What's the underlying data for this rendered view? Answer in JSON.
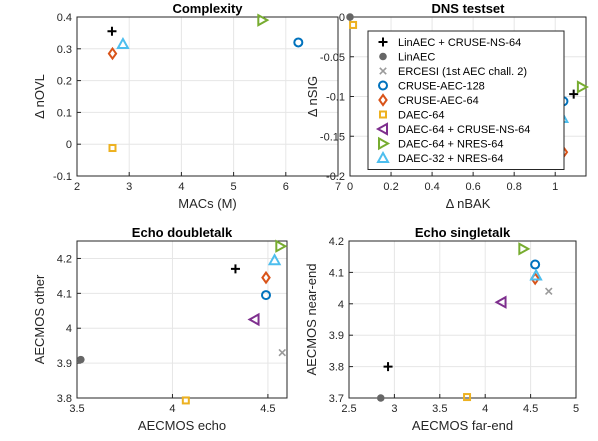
{
  "chart_data": [
    {
      "type": "scatter",
      "title": "Complexity",
      "xlabel": "MACs (M)",
      "ylabel": "Δ nOVL",
      "xlim": [
        2,
        7
      ],
      "ylim": [
        -0.1,
        0.4
      ],
      "xticks": [
        "2",
        "3",
        "4",
        "5",
        "6",
        "7"
      ],
      "yticks": [
        "-0.1",
        "0",
        "0.1",
        "0.2",
        "0.3",
        "0.4"
      ],
      "grid": true,
      "points": [
        {
          "series": "LinAEC + CRUSE-NS-64",
          "x": 2.67,
          "y": 0.355
        },
        {
          "series": "CRUSE-AEC-128",
          "x": 6.24,
          "y": 0.32
        },
        {
          "series": "CRUSE-AEC-64",
          "x": 2.68,
          "y": 0.285
        },
        {
          "series": "DAEC-64",
          "x": 2.68,
          "y": -0.012
        },
        {
          "series": "DAEC-64 + NRES-64",
          "x": 5.55,
          "y": 0.39
        },
        {
          "series": "DAEC-32 + NRES-64",
          "x": 2.88,
          "y": 0.315
        }
      ]
    },
    {
      "type": "scatter",
      "title": "DNS testset",
      "xlabel": "Δ nBAK",
      "ylabel": "Δ nSIG",
      "xlim": [
        0,
        1.15
      ],
      "ylim": [
        -0.2,
        0
      ],
      "xticks": [
        "0",
        "0.2",
        "0.4",
        "0.6",
        "0.8",
        "1"
      ],
      "yticks": [
        "-0.2",
        "-0.15",
        "-0.1",
        "-0.05",
        "0"
      ],
      "grid": true,
      "legend_position": "top-right",
      "legend": [
        "LinAEC + CRUSE-NS-64",
        "LinAEC",
        "ERCESI (1st AEC chall. 2)",
        "CRUSE-AEC-128",
        "CRUSE-AEC-64",
        "DAEC-64",
        "DAEC-64 + CRUSE-NS-64",
        "DAEC-64 + NRES-64",
        "DAEC-32 + NRES-64"
      ],
      "points": [
        {
          "series": "LinAEC",
          "x": 0.0,
          "y": 0.0
        },
        {
          "series": "DAEC-64",
          "x": 0.015,
          "y": -0.01
        },
        {
          "series": "LinAEC + CRUSE-NS-64",
          "x": 1.09,
          "y": -0.097
        },
        {
          "series": "DAEC-64 + NRES-64",
          "x": 1.13,
          "y": -0.088
        },
        {
          "series": "CRUSE-AEC-128",
          "x": 1.04,
          "y": -0.106
        },
        {
          "series": "DAEC-32 + NRES-64",
          "x": 1.035,
          "y": -0.127
        },
        {
          "series": "CRUSE-AEC-64",
          "x": 1.04,
          "y": -0.17
        }
      ]
    },
    {
      "type": "scatter",
      "title": "Echo doubletalk",
      "xlabel": "AECMOS echo",
      "ylabel": "AECMOS other",
      "xlim": [
        3.5,
        4.6
      ],
      "ylim": [
        3.8,
        4.25
      ],
      "xticks": [
        "3.5",
        "4",
        "4.5"
      ],
      "yticks": [
        "3.8",
        "3.9",
        "4",
        "4.1",
        "4.2"
      ],
      "grid": true,
      "points": [
        {
          "series": "LinAEC",
          "x": 3.52,
          "y": 3.91
        },
        {
          "series": "DAEC-64",
          "x": 4.07,
          "y": 3.793
        },
        {
          "series": "LinAEC + CRUSE-NS-64",
          "x": 4.33,
          "y": 4.17
        },
        {
          "series": "DAEC-64 + CRUSE-NS-64",
          "x": 4.43,
          "y": 4.025
        },
        {
          "series": "CRUSE-AEC-128",
          "x": 4.49,
          "y": 4.095
        },
        {
          "series": "CRUSE-AEC-64",
          "x": 4.49,
          "y": 4.145
        },
        {
          "series": "DAEC-32 + NRES-64",
          "x": 4.535,
          "y": 4.195
        },
        {
          "series": "DAEC-64 + NRES-64",
          "x": 4.565,
          "y": 4.235
        },
        {
          "series": "ERCESI (1st AEC chall. 2)",
          "x": 4.575,
          "y": 3.93
        }
      ]
    },
    {
      "type": "scatter",
      "title": "Echo singletalk",
      "xlabel": "AECMOS far-end",
      "ylabel": "AECMOS near-end",
      "xlim": [
        2.5,
        5
      ],
      "ylim": [
        3.7,
        4.2
      ],
      "xticks": [
        "2.5",
        "3",
        "3.5",
        "4",
        "4.5",
        "5"
      ],
      "yticks": [
        "3.7",
        "3.8",
        "3.9",
        "4",
        "4.1",
        "4.2"
      ],
      "grid": true,
      "points": [
        {
          "series": "LinAEC",
          "x": 2.85,
          "y": 3.7
        },
        {
          "series": "LinAEC + CRUSE-NS-64",
          "x": 2.93,
          "y": 3.8
        },
        {
          "series": "DAEC-64",
          "x": 3.8,
          "y": 3.703
        },
        {
          "series": "DAEC-64 + CRUSE-NS-64",
          "x": 4.18,
          "y": 4.005
        },
        {
          "series": "DAEC-64 + NRES-64",
          "x": 4.42,
          "y": 4.175
        },
        {
          "series": "CRUSE-AEC-128",
          "x": 4.55,
          "y": 4.125
        },
        {
          "series": "CRUSE-AEC-64",
          "x": 4.55,
          "y": 4.08
        },
        {
          "series": "DAEC-32 + NRES-64",
          "x": 4.56,
          "y": 4.09
        },
        {
          "series": "ERCESI (1st AEC chall. 2)",
          "x": 4.7,
          "y": 4.04
        }
      ]
    }
  ],
  "styles": {
    "LinAEC + CRUSE-NS-64": {
      "marker": "plus",
      "color": "#000000"
    },
    "LinAEC": {
      "marker": "dot",
      "color": "#666666"
    },
    "ERCESI (1st AEC chall. 2)": {
      "marker": "x",
      "color": "#9a9a9a"
    },
    "CRUSE-AEC-128": {
      "marker": "circle",
      "color": "#0072bd"
    },
    "CRUSE-AEC-64": {
      "marker": "diamond",
      "color": "#d95319"
    },
    "DAEC-64": {
      "marker": "square",
      "color": "#edb120"
    },
    "DAEC-64 + CRUSE-NS-64": {
      "marker": "tri-left",
      "color": "#7e2f8e"
    },
    "DAEC-64 + NRES-64": {
      "marker": "tri-right",
      "color": "#77ac30"
    },
    "DAEC-32 + NRES-64": {
      "marker": "tri-up",
      "color": "#4dbeee"
    }
  }
}
